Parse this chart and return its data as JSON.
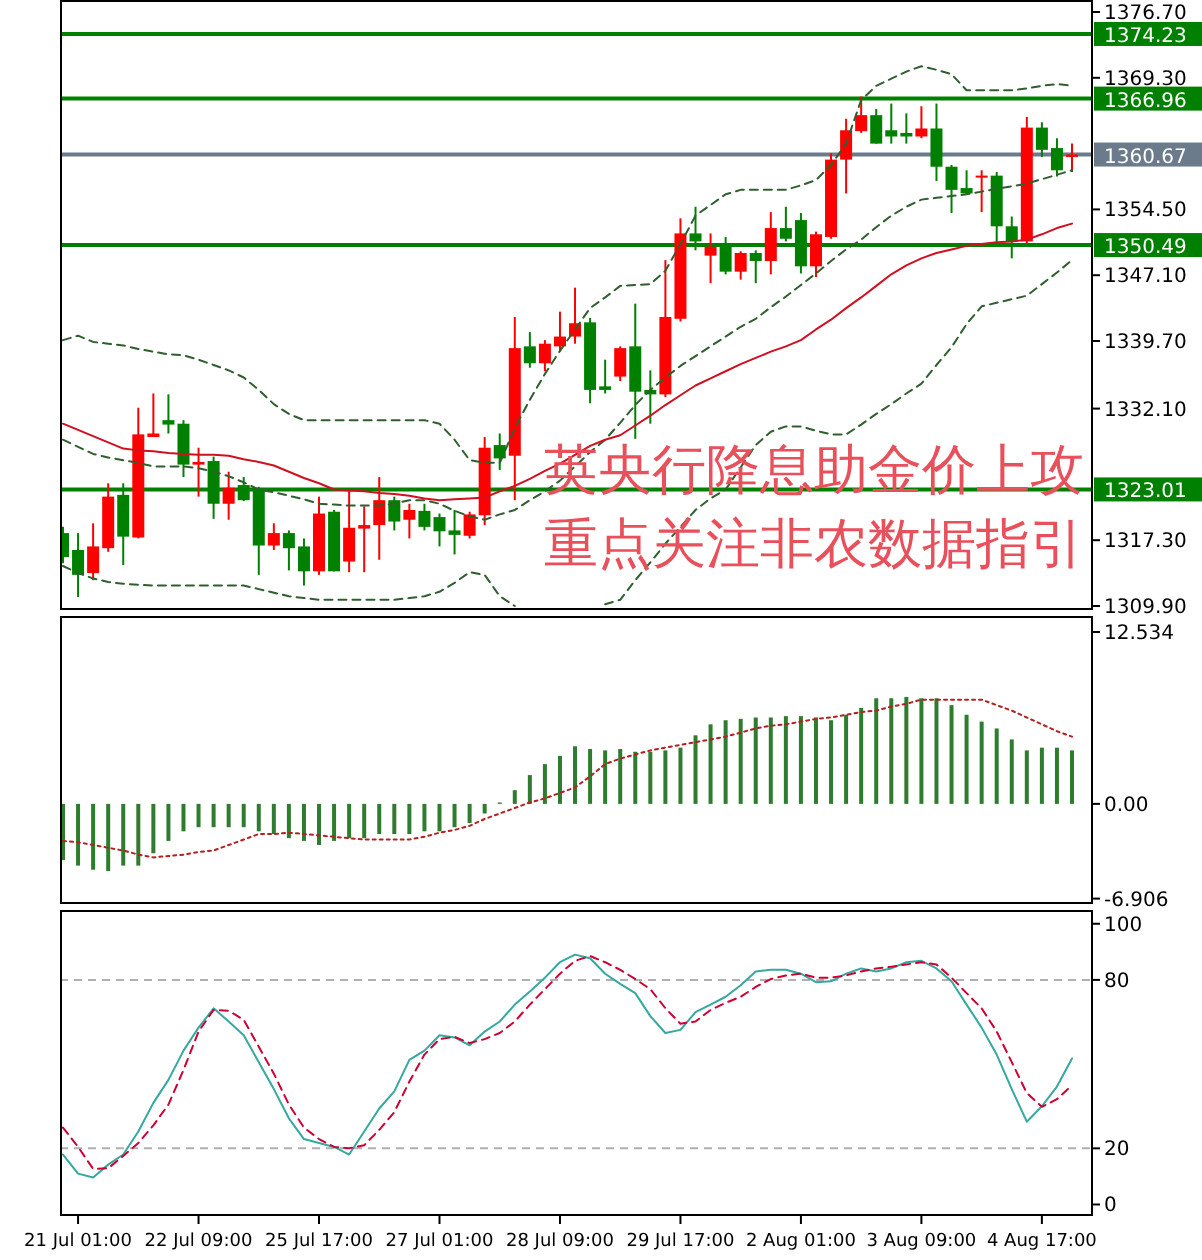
{
  "chart_data": [
    {
      "type": "candlestick",
      "tick_labels": "y",
      "categories": [
        null,
        null,
        null,
        null,
        null,
        null,
        null,
        null,
        null,
        null,
        null,
        null,
        null,
        null,
        null,
        null,
        null,
        null,
        null,
        null,
        null,
        null,
        null,
        null,
        null,
        null,
        null,
        null,
        null,
        null,
        null,
        null,
        null,
        null,
        null,
        null,
        null,
        null,
        null,
        null,
        null,
        null,
        null,
        null,
        null,
        null,
        null,
        null,
        null,
        null,
        null,
        null,
        null,
        null,
        null,
        null,
        null,
        null,
        null,
        null,
        null,
        null,
        null,
        null,
        null,
        null,
        null,
        null
      ],
      "ohlc": [
        [
          1318.1,
          1318.8,
          1314.7,
          1315.4
        ],
        [
          1316.2,
          1318.1,
          1310.9,
          1313.4
        ],
        [
          1313.6,
          1319.2,
          1312.8,
          1316.6
        ],
        [
          1316.4,
          1323.7,
          1316.0,
          1322.2
        ],
        [
          1322.4,
          1323.7,
          1314.5,
          1317.7
        ],
        [
          1317.6,
          1332.2,
          1317.5,
          1329.2
        ],
        [
          1328.9,
          1333.8,
          1328.9,
          1329.3
        ],
        [
          1330.8,
          1333.7,
          1329.3,
          1330.3
        ],
        [
          1330.4,
          1330.8,
          1324.4,
          1325.8
        ],
        [
          1325.8,
          1327.7,
          1322.2,
          1326.1
        ],
        [
          1326.2,
          1326.7,
          1319.7,
          1321.4
        ],
        [
          1321.4,
          1325.0,
          1319.6,
          1323.2
        ],
        [
          1323.5,
          1324.4,
          1321.7,
          1321.8
        ],
        [
          1322.9,
          1323.3,
          1313.4,
          1316.7
        ],
        [
          1316.7,
          1319.2,
          1316.2,
          1318.1
        ],
        [
          1318.1,
          1318.4,
          1313.9,
          1316.4
        ],
        [
          1316.6,
          1317.5,
          1312.2,
          1313.8
        ],
        [
          1313.8,
          1322.2,
          1313.4,
          1320.3
        ],
        [
          1320.5,
          1320.7,
          1313.8,
          1313.8
        ],
        [
          1314.9,
          1322.9,
          1313.7,
          1318.7
        ],
        [
          1318.6,
          1321.1,
          1313.7,
          1319.0
        ],
        [
          1319.0,
          1324.4,
          1315.1,
          1321.8
        ],
        [
          1321.8,
          1322.2,
          1318.4,
          1319.4
        ],
        [
          1319.6,
          1321.4,
          1317.5,
          1320.7
        ],
        [
          1320.6,
          1321.4,
          1318.4,
          1318.8
        ],
        [
          1319.9,
          1320.3,
          1316.6,
          1318.3
        ],
        [
          1318.4,
          1320.7,
          1315.7,
          1317.9
        ],
        [
          1317.8,
          1320.5,
          1317.5,
          1320.2
        ],
        [
          1320.1,
          1328.9,
          1319.0,
          1327.7
        ],
        [
          1328.0,
          1329.3,
          1325.2,
          1326.5
        ],
        [
          1326.8,
          1342.4,
          1321.8,
          1338.9
        ],
        [
          1339.1,
          1340.7,
          1336.7,
          1337.2
        ],
        [
          1337.2,
          1339.8,
          1336.3,
          1339.4
        ],
        [
          1339.1,
          1343.0,
          1338.5,
          1340.2
        ],
        [
          1340.2,
          1345.7,
          1339.4,
          1341.7
        ],
        [
          1341.8,
          1342.3,
          1332.7,
          1334.2
        ],
        [
          1334.6,
          1337.6,
          1333.8,
          1334.2
        ],
        [
          1335.7,
          1339.1,
          1335.2,
          1338.9
        ],
        [
          1339.1,
          1343.9,
          1328.7,
          1334.0
        ],
        [
          1334.2,
          1336.4,
          1330.4,
          1333.7
        ],
        [
          1333.7,
          1348.8,
          1333.4,
          1342.4
        ],
        [
          1342.2,
          1353.5,
          1341.9,
          1351.8
        ],
        [
          1351.8,
          1354.8,
          1349.9,
          1350.9
        ],
        [
          1349.3,
          1351.8,
          1346.2,
          1350.3
        ],
        [
          1350.3,
          1351.4,
          1347.2,
          1347.5
        ],
        [
          1347.5,
          1349.8,
          1346.6,
          1349.6
        ],
        [
          1349.6,
          1349.9,
          1346.2,
          1348.7
        ],
        [
          1348.7,
          1354.2,
          1347.2,
          1352.4
        ],
        [
          1352.4,
          1354.8,
          1350.9,
          1351.2
        ],
        [
          1353.3,
          1354.1,
          1347.3,
          1348.1
        ],
        [
          1348.1,
          1352.0,
          1346.9,
          1351.7
        ],
        [
          1351.4,
          1360.8,
          1351.2,
          1360.1
        ],
        [
          1360.1,
          1364.7,
          1356.3,
          1363.4
        ],
        [
          1363.3,
          1367.2,
          1363.1,
          1365.1
        ],
        [
          1365.1,
          1365.8,
          1361.9,
          1361.9
        ],
        [
          1363.4,
          1366.4,
          1361.9,
          1362.7
        ],
        [
          1363.1,
          1365.3,
          1361.9,
          1362.7
        ],
        [
          1362.7,
          1366.1,
          1362.5,
          1363.6
        ],
        [
          1363.6,
          1366.4,
          1357.7,
          1359.3
        ],
        [
          1359.3,
          1359.5,
          1354.1,
          1356.7
        ],
        [
          1356.9,
          1358.9,
          1356.2,
          1356.3
        ],
        [
          1358.2,
          1358.9,
          1354.2,
          1358.3
        ],
        [
          1358.3,
          1358.7,
          1350.7,
          1352.6
        ],
        [
          1352.6,
          1353.7,
          1349.0,
          1350.9
        ],
        [
          1350.9,
          1364.9,
          1350.7,
          1363.7
        ],
        [
          1363.7,
          1364.3,
          1360.4,
          1361.2
        ],
        [
          1361.4,
          1362.5,
          1358.2,
          1358.9
        ],
        [
          1360.4,
          1361.9,
          1358.7,
          1360.67
        ]
      ],
      "colors": [
        "#008000",
        "#008000",
        "#ff0000",
        "#ff0000",
        "#008000",
        "#ff0000",
        "#ff0000",
        "#008000",
        "#008000",
        "#ff0000",
        "#008000",
        "#ff0000",
        "#008000",
        "#008000",
        "#ff0000",
        "#008000",
        "#008000",
        "#ff0000",
        "#008000",
        "#ff0000",
        "#ff0000",
        "#ff0000",
        "#008000",
        "#ff0000",
        "#008000",
        "#008000",
        "#008000",
        "#ff0000",
        "#ff0000",
        "#008000",
        "#ff0000",
        "#008000",
        "#ff0000",
        "#ff0000",
        "#ff0000",
        "#008000",
        "#008000",
        "#ff0000",
        "#008000",
        "#008000",
        "#ff0000",
        "#ff0000",
        "#008000",
        "#ff0000",
        "#008000",
        "#ff0000",
        "#008000",
        "#ff0000",
        "#008000",
        "#008000",
        "#ff0000",
        "#ff0000",
        "#ff0000",
        "#ff0000",
        "#008000",
        "#008000",
        "#008000",
        "#ff0000",
        "#008000",
        "#008000",
        "#008000",
        "#ff0000",
        "#008000",
        "#008000",
        "#ff0000",
        "#008000",
        "#008000",
        "#ff0000"
      ],
      "series": [
        {
          "type": "line",
          "color": "#2f5f2f",
          "line_style": "dashed",
          "values": [
            1339.8,
            1340.3,
            1339.6,
            1339.4,
            1339.2,
            1338.8,
            1338.5,
            1338.2,
            1338.1,
            1337.6,
            1337.0,
            1336.4,
            1335.6,
            1334.2,
            1332.6,
            1331.5,
            1330.8,
            1330.8,
            1330.8,
            1330.8,
            1330.8,
            1330.8,
            1330.8,
            1330.8,
            1330.8,
            1330.4,
            1328.6,
            1326.3,
            1326.0,
            1326.0,
            1329.9,
            1333.1,
            1336.0,
            1338.6,
            1341.0,
            1343.4,
            1344.6,
            1345.9,
            1346.0,
            1346.1,
            1347.6,
            1350.6,
            1353.8,
            1355.0,
            1356.2,
            1356.7,
            1356.7,
            1356.7,
            1356.7,
            1357.2,
            1357.8,
            1359.5,
            1361.9,
            1366.8,
            1368.4,
            1369.2,
            1370.0,
            1370.6,
            1370.2,
            1369.7,
            1367.9,
            1367.9,
            1367.9,
            1367.9,
            1368.1,
            1368.4,
            1368.6,
            1368.4
          ]
        },
        {
          "type": "line",
          "color": "#2f5f2f",
          "line_style": "dashed",
          "values": [
            1328.6,
            1327.8,
            1327.0,
            1326.6,
            1326.3,
            1326.0,
            1325.6,
            1325.6,
            1325.6,
            1325.4,
            1325.0,
            1324.5,
            1323.8,
            1323.0,
            1322.7,
            1322.3,
            1321.9,
            1321.4,
            1321.3,
            1321.2,
            1321.2,
            1321.2,
            1321.4,
            1321.8,
            1321.8,
            1321.4,
            1320.6,
            1320.0,
            1319.6,
            1320.2,
            1320.7,
            1321.8,
            1322.8,
            1324.0,
            1325.6,
            1327.2,
            1328.6,
            1330.5,
            1332.5,
            1334.2,
            1335.6,
            1336.9,
            1338.0,
            1339.1,
            1340.2,
            1341.3,
            1342.2,
            1343.5,
            1344.7,
            1346.0,
            1347.3,
            1348.7,
            1350.0,
            1351.1,
            1352.5,
            1353.8,
            1354.8,
            1355.6,
            1355.8,
            1356.0,
            1356.2,
            1356.5,
            1356.8,
            1357.1,
            1357.4,
            1357.9,
            1358.4,
            1358.9
          ]
        },
        {
          "type": "line",
          "color": "#d01020",
          "line_style": "solid",
          "values": [
            1330.4,
            1329.7,
            1329.0,
            1328.3,
            1327.6,
            1327.4,
            1327.3,
            1327.1,
            1327.0,
            1326.9,
            1326.9,
            1326.8,
            1326.4,
            1326.1,
            1325.7,
            1325.0,
            1324.3,
            1323.7,
            1323.0,
            1322.9,
            1322.8,
            1322.6,
            1322.5,
            1322.3,
            1322.0,
            1321.8,
            1321.9,
            1322.0,
            1322.1,
            1322.8,
            1323.4,
            1324.2,
            1325.1,
            1325.9,
            1326.9,
            1327.9,
            1328.6,
            1329.1,
            1330.2,
            1331.3,
            1332.5,
            1333.6,
            1334.7,
            1335.5,
            1336.3,
            1337.1,
            1337.8,
            1338.5,
            1339.1,
            1339.8,
            1341.0,
            1342.1,
            1343.4,
            1344.6,
            1345.9,
            1347.2,
            1348.2,
            1349.0,
            1349.6,
            1350.0,
            1350.4,
            1350.6,
            1350.8,
            1350.9,
            1351.1,
            1351.7,
            1352.4,
            1352.9
          ]
        },
        {
          "type": "line",
          "color": "#2f5f2f",
          "line_style": "dashed",
          "values": [
            1314.4,
            1313.6,
            1313.0,
            1312.6,
            1312.4,
            1312.3,
            1312.2,
            1312.2,
            1312.2,
            1312.2,
            1312.2,
            1312.2,
            1312.2,
            1311.8,
            1311.4,
            1311.0,
            1310.8,
            1310.6,
            1310.6,
            1310.6,
            1310.6,
            1310.6,
            1310.6,
            1310.8,
            1311.0,
            1311.5,
            1312.5,
            1313.7,
            1313.4,
            1311.0,
            1309.9,
            null,
            null,
            null,
            null,
            null,
            1310.1,
            1310.6,
            1312.8,
            1314.8,
            1316.9,
            1318.8,
            1320.7,
            1322.0,
            1323.0,
            1325.5,
            1328.0,
            1329.5,
            1330.1,
            1330.1,
            1329.6,
            1329.2,
            1329.2,
            1330.3,
            1331.5,
            1332.6,
            1333.8,
            1334.9,
            1337.0,
            1339.0,
            1341.6,
            1343.6,
            1344.0,
            1344.4,
            1344.8,
            1346.1,
            1347.4,
            1348.8
          ]
        }
      ],
      "ylim": [
        1309.45,
        1378.05
      ],
      "yticks": [
        {
          "value": 1376.7,
          "label": "1376.70"
        },
        {
          "value": 1369.3,
          "label": "1369.30"
        },
        {
          "value": 1354.5,
          "label": "1354.50"
        },
        {
          "value": 1347.1,
          "label": "1347.10"
        },
        {
          "value": 1339.7,
          "label": "1339.70"
        },
        {
          "value": 1332.1,
          "label": "1332.10"
        },
        {
          "value": 1317.3,
          "label": "1317.30"
        },
        {
          "value": 1309.9,
          "label": "1309.90"
        }
      ],
      "ref_lines": [
        {
          "axis": "y",
          "value": 1374.23,
          "label": "1374.23",
          "color": "#008000"
        },
        {
          "axis": "y",
          "value": 1366.96,
          "label": "1366.96",
          "color": "#008000"
        },
        {
          "axis": "y",
          "value": 1360.67,
          "label": "1360.67",
          "color": "#6b7b8c"
        },
        {
          "axis": "y",
          "value": 1350.49,
          "label": "1350.49",
          "color": "#008000"
        },
        {
          "axis": "y",
          "value": 1323.01,
          "label": "1323.01",
          "color": "#008000"
        }
      ],
      "annotations": [
        "英央行降息助金价上攻",
        "重点关注非农数据指引"
      ]
    },
    {
      "type": "bar",
      "tick_labels": "y",
      "categories": [
        null,
        null,
        null,
        null,
        null,
        null,
        null,
        null,
        null,
        null,
        null,
        null,
        null,
        null,
        null,
        null,
        null,
        null,
        null,
        null,
        null,
        null,
        null,
        null,
        null,
        null,
        null,
        null,
        null,
        null,
        null,
        null,
        null,
        null,
        null,
        null,
        null,
        null,
        null,
        null,
        null,
        null,
        null,
        null,
        null,
        null,
        null,
        null,
        null,
        null,
        null,
        null,
        null,
        null,
        null,
        null,
        null,
        null,
        null,
        null,
        null,
        null,
        null,
        null,
        null,
        null,
        null,
        null
      ],
      "series": [
        {
          "color": "#2e7d2e",
          "values": [
            -4.1,
            -4.5,
            -4.8,
            -4.9,
            -4.5,
            -4.5,
            -3.6,
            -2.7,
            -2.0,
            -1.7,
            -1.7,
            -1.7,
            -1.7,
            -2.0,
            -2.2,
            -2.5,
            -2.7,
            -3.0,
            -2.7,
            -2.5,
            -2.5,
            -2.2,
            -2.2,
            -2.2,
            -2.0,
            -2.0,
            -1.7,
            -1.4,
            -0.7,
            0.1,
            1.0,
            2.1,
            2.9,
            3.5,
            4.2,
            4.0,
            3.9,
            4.0,
            3.8,
            3.8,
            3.9,
            4.1,
            5.0,
            5.8,
            6.1,
            6.2,
            6.3,
            6.3,
            6.4,
            6.4,
            6.3,
            6.1,
            6.5,
            7.0,
            7.7,
            7.7,
            7.8,
            7.7,
            7.7,
            7.2,
            6.5,
            6.0,
            5.5,
            4.7,
            3.9,
            4.1,
            4.1,
            3.9
          ]
        },
        {
          "type": "line",
          "color": "#b22222",
          "line_style": "dotted",
          "values": [
            -2.7,
            -2.8,
            -3.0,
            -3.2,
            -3.4,
            -3.7,
            -3.9,
            -3.8,
            -3.7,
            -3.5,
            -3.4,
            -3.0,
            -2.6,
            -2.2,
            -2.2,
            -2.1,
            -2.2,
            -2.3,
            -2.4,
            -2.5,
            -2.6,
            -2.6,
            -2.6,
            -2.6,
            -2.4,
            -2.1,
            -1.9,
            -1.6,
            -1.1,
            -0.7,
            -0.3,
            0.1,
            0.4,
            0.8,
            1.2,
            2.0,
            2.9,
            3.3,
            3.6,
            3.9,
            4.1,
            4.3,
            4.5,
            4.7,
            4.9,
            5.2,
            5.5,
            5.7,
            5.8,
            6.0,
            6.2,
            6.3,
            6.5,
            6.7,
            6.8,
            7.1,
            7.3,
            7.6,
            7.6,
            7.6,
            7.6,
            7.6,
            7.2,
            6.8,
            6.3,
            5.8,
            5.3,
            4.9
          ]
        }
      ],
      "ylim": [
        -7.3,
        13.7
      ],
      "yticks": [
        12.534,
        {
          "value": 0,
          "label": "0.00"
        },
        -6.906
      ]
    },
    {
      "type": "line",
      "categories": [
        null,
        "21 Jul 01:00",
        null,
        null,
        null,
        null,
        null,
        null,
        null,
        "22 Jul 09:00",
        null,
        null,
        null,
        null,
        null,
        null,
        null,
        "25 Jul 17:00",
        null,
        null,
        null,
        null,
        null,
        null,
        null,
        "27 Jul 01:00",
        null,
        null,
        null,
        null,
        null,
        null,
        null,
        "28 Jul 09:00",
        null,
        null,
        null,
        null,
        null,
        null,
        null,
        "29 Jul 17:00",
        null,
        null,
        null,
        null,
        null,
        null,
        null,
        "2 Aug 01:00",
        null,
        null,
        null,
        null,
        null,
        null,
        null,
        "3 Aug 09:00",
        null,
        null,
        null,
        null,
        null,
        null,
        null,
        "4 Aug 17:00",
        null,
        null
      ],
      "series": [
        {
          "color": "#35a8a0",
          "line_style": "solid",
          "values": [
            17.8,
            11.0,
            9.6,
            14.2,
            17.8,
            26.0,
            36.2,
            44.4,
            54.8,
            63.0,
            69.9,
            65.2,
            60.3,
            50.7,
            41.1,
            30.7,
            23.3,
            21.9,
            20.5,
            17.8,
            26.0,
            34.2,
            40.3,
            51.5,
            54.8,
            60.3,
            59.5,
            56.7,
            61.6,
            65.2,
            71.2,
            75.9,
            80.8,
            86.3,
            89.0,
            87.7,
            82.2,
            78.6,
            75.3,
            67.1,
            61.1,
            62.2,
            68.5,
            71.2,
            74.0,
            78.1,
            83.0,
            83.6,
            83.6,
            82.2,
            79.2,
            79.5,
            82.2,
            84.1,
            83.0,
            84.1,
            86.3,
            86.8,
            84.1,
            79.5,
            71.2,
            63.0,
            53.4,
            41.1,
            29.5,
            35.0,
            42.0,
            52.0
          ]
        },
        {
          "color": "#cc0033",
          "line_style": "dashed",
          "values": [
            27.4,
            20.5,
            12.7,
            12.9,
            17.3,
            21.9,
            28.2,
            35.6,
            47.9,
            61.6,
            69.3,
            69.0,
            65.8,
            56.2,
            46.6,
            35.6,
            27.4,
            23.3,
            20.5,
            20.0,
            21.1,
            26.6,
            32.9,
            43.8,
            53.4,
            58.9,
            59.7,
            57.5,
            58.9,
            61.1,
            65.2,
            71.2,
            76.7,
            82.2,
            86.8,
            88.5,
            86.3,
            83.6,
            80.3,
            76.7,
            69.9,
            64.4,
            65.2,
            69.3,
            71.8,
            74.0,
            77.5,
            80.3,
            81.6,
            82.2,
            80.8,
            80.8,
            81.6,
            83.0,
            84.1,
            84.7,
            85.5,
            86.3,
            85.5,
            80.8,
            75.3,
            69.9,
            61.6,
            50.7,
            39.7,
            34.8,
            37.5,
            42.5
          ]
        }
      ],
      "ylim": [
        -4.1,
        104.9
      ],
      "yticks": [
        100,
        80,
        20,
        0
      ],
      "ref_lines": [
        {
          "axis": "y",
          "value": 80,
          "label": null,
          "color": "#b0b0b0",
          "line_style": "dashed"
        },
        {
          "axis": "y",
          "value": 20,
          "label": null,
          "color": "#b0b0b0",
          "line_style": "dashed"
        }
      ]
    }
  ]
}
